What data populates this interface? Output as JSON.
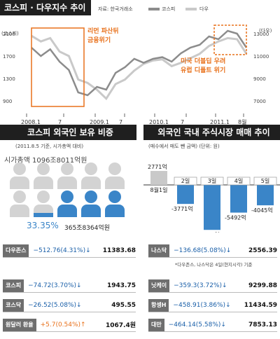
{
  "colors": {
    "orange": "#e8701a",
    "blue": "#3a85c8",
    "dark": "#1f1f1f",
    "gray": "#8c8c8c"
  },
  "top": {
    "title": "코스피 · 다우지수 추이",
    "source": "자료: 한국거래소",
    "legend": [
      "코스피",
      "다우"
    ],
    "left_unit": "(코스피)",
    "right_unit": "(다우)",
    "left_ticks": [
      "2100",
      "1700",
      "1300",
      "900"
    ],
    "right_ticks": [
      "13000",
      "11000",
      "9000",
      "7000"
    ],
    "x_ticks": [
      "2008.1",
      "7",
      "2009.1",
      "7",
      "2010.1",
      "7",
      "2011.1",
      "8월"
    ],
    "annotation_1": [
      "리먼 파산뒤",
      "금융위기"
    ],
    "annotation_2": [
      "미국 더블딥 우려",
      "유럽 디폴트 위기"
    ]
  },
  "chart_data": [
    {
      "type": "line",
      "title": "코스피 · 다우지수 추이",
      "x": [
        "2008.1",
        "2008.3",
        "2008.5",
        "2008.7",
        "2008.9",
        "2008.10",
        "2008.11",
        "2009.1",
        "2009.3",
        "2009.5",
        "2009.7",
        "2009.9",
        "2009.11",
        "2010.1",
        "2010.3",
        "2010.5",
        "2010.7",
        "2010.9",
        "2010.11",
        "2011.1",
        "2011.3",
        "2011.5",
        "2011.7",
        "2011.8"
      ],
      "series": [
        {
          "name": "코스피",
          "values": [
            1850,
            1700,
            1820,
            1600,
            1450,
            1050,
            1000,
            1150,
            1100,
            1400,
            1500,
            1650,
            1580,
            1650,
            1680,
            1600,
            1750,
            1850,
            1900,
            2050,
            2000,
            2150,
            2100,
            1850
          ]
        },
        {
          "name": "다우",
          "values": [
            12800,
            12300,
            12600,
            11400,
            11000,
            8900,
            8600,
            8000,
            7200,
            8500,
            8900,
            9700,
            10300,
            10600,
            10700,
            10100,
            10400,
            10800,
            11200,
            11900,
            12300,
            12600,
            12500,
            11200
          ]
        }
      ],
      "left_ylim": [
        900,
        2100
      ],
      "right_ylim": [
        7000,
        13000
      ]
    },
    {
      "type": "bar",
      "title": "외국인 국내 주식시장 매매 추이",
      "categories": [
        "8월1일",
        "2일",
        "3일",
        "4일",
        "5일"
      ],
      "values": [
        2771,
        -3771,
        -8917,
        -5492,
        -4045
      ],
      "ylabel": "억원"
    }
  ],
  "own": {
    "title": "코스피 외국인 보유 비중",
    "note": "(2011.8.5 기준, 시가총액 대비)",
    "total": "시가총액 1096조8011억원",
    "share_pct": "33.35%",
    "share_amount": "365조8364억원",
    "share_value": 33.35
  },
  "trade": {
    "title": "외국인 국내 주식시장 매매 추이",
    "note": "(매수에서 매도 뺀 금액) (단위: 원)",
    "labels": [
      "2771억",
      "-3771억",
      "-8917억",
      "-5492억",
      "-4045억"
    ]
  },
  "indices": {
    "left": [
      {
        "name": "다우존스",
        "change": "−512.76",
        "pct": "(4.31%)",
        "arrow": "↓",
        "value": "11383.68"
      },
      {
        "name": "코스피",
        "change": "−74.72",
        "pct": "(3.70%)",
        "arrow": "↓",
        "value": "1943.75"
      },
      {
        "name": "코스닥",
        "change": "−26.52",
        "pct": "(5.08%)",
        "arrow": "↓",
        "value": "495.55"
      },
      {
        "name": "원달러 환율",
        "change": "+5.7",
        "pct": "(0.54%)",
        "arrow": "↑",
        "value": "1067.4원"
      }
    ],
    "right": [
      {
        "name": "나스닥",
        "change": "−136.68",
        "pct": "(5.08%)",
        "arrow": "↓",
        "value": "2556.39"
      },
      {
        "name": "닛케이",
        "change": "−359.3",
        "pct": "(3.72%)",
        "arrow": "↓",
        "value": "9299.88"
      },
      {
        "name": "항셍H",
        "change": "−458.91",
        "pct": "(3.86%)",
        "arrow": "↓",
        "value": "11434.59"
      },
      {
        "name": "대만",
        "change": "−464.14",
        "pct": "(5.58%)",
        "arrow": "↓",
        "value": "7853.13"
      }
    ],
    "footnote": "*다우존스, 나스닥은 4일(현지시각) 기준"
  }
}
